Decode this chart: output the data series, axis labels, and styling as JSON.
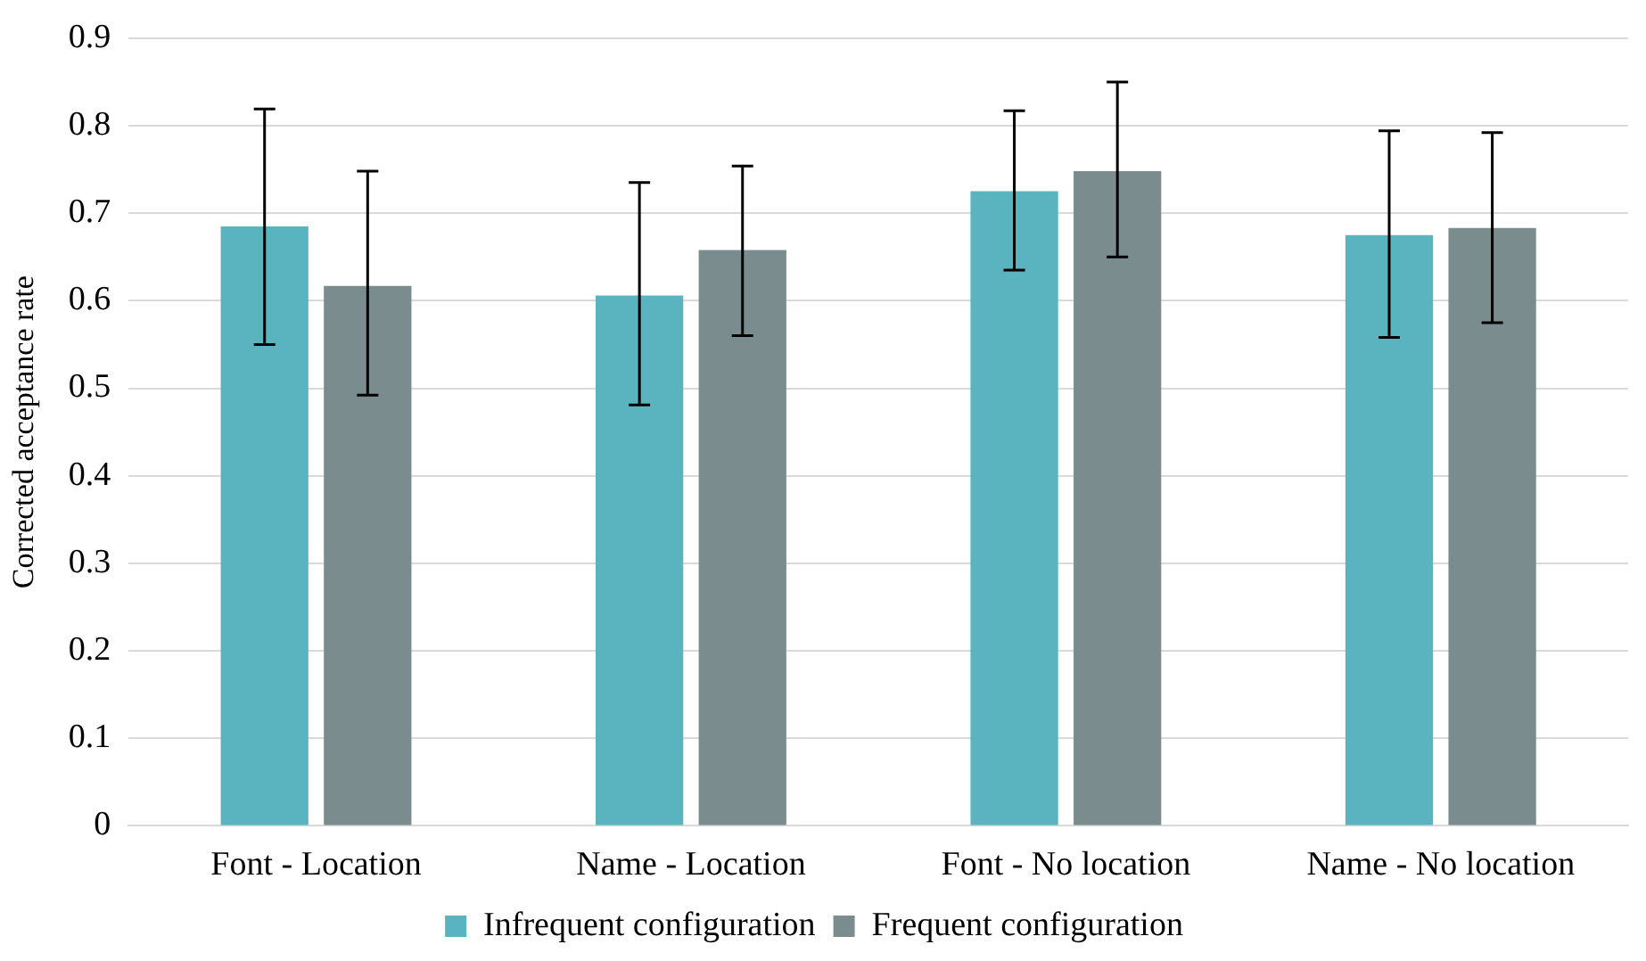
{
  "chart_data": {
    "type": "bar",
    "ylabel": "Corrected acceptance rate",
    "categories": [
      "Font - Location",
      "Name - Location",
      "Font - No location",
      "Name - No location"
    ],
    "series": [
      {
        "name": "Infrequent configuration",
        "color": "#5ab4bf",
        "values": [
          0.685,
          0.606,
          0.725,
          0.675
        ],
        "errors": [
          [
            0.55,
            0.819
          ],
          [
            0.481,
            0.735
          ],
          [
            0.635,
            0.817
          ],
          [
            0.558,
            0.794
          ]
        ]
      },
      {
        "name": "Frequent configuration",
        "color": "#7a8c8e",
        "values": [
          0.617,
          0.658,
          0.748,
          0.683
        ],
        "errors": [
          [
            0.492,
            0.748
          ],
          [
            0.56,
            0.754
          ],
          [
            0.65,
            0.85
          ],
          [
            0.575,
            0.792
          ]
        ]
      }
    ],
    "ylim": [
      0,
      0.9
    ],
    "yticks": [
      0,
      0.1,
      0.2,
      0.3,
      0.4,
      0.5,
      0.6,
      0.7,
      0.8,
      0.9
    ],
    "grid": "y",
    "legend": "bottom"
  }
}
